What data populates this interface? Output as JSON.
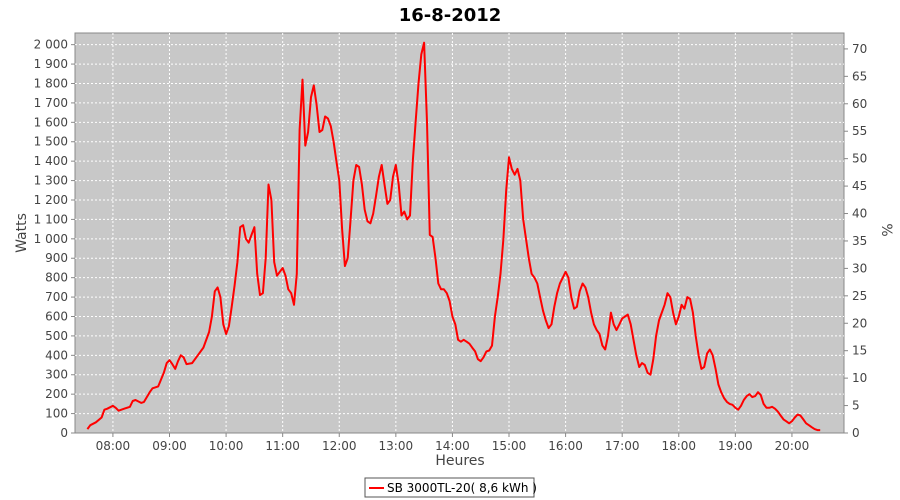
{
  "chart_data": {
    "type": "line",
    "title": "16-8-2012",
    "xlabel": "Heures",
    "ylabel": "Watts",
    "y2label": "%",
    "x_ticks": [
      "08:00",
      "09:00",
      "10:00",
      "11:00",
      "12:00",
      "13:00",
      "14:00",
      "15:00",
      "16:00",
      "17:00",
      "18:00",
      "19:00",
      "20:00"
    ],
    "x_tick_hours": [
      8,
      9,
      10,
      11,
      12,
      13,
      14,
      15,
      16,
      17,
      18,
      19,
      20
    ],
    "xlim": [
      7.33,
      20.92
    ],
    "ylim": [
      0,
      2060
    ],
    "y_ticks": [
      0,
      100,
      200,
      300,
      400,
      500,
      600,
      700,
      800,
      900,
      1000,
      1100,
      1200,
      1300,
      1400,
      1500,
      1600,
      1700,
      1800,
      1900,
      2000
    ],
    "y_tick_labels": [
      "0",
      "100",
      "200",
      "300",
      "400",
      "500",
      "600",
      "700",
      "800",
      "900",
      "1 000",
      "1 100",
      "1 200",
      "1 300",
      "1 400",
      "1 500",
      "1 600",
      "1 700",
      "1 800",
      "1 900",
      "2 000"
    ],
    "y2lim": [
      0,
      72.9
    ],
    "y2_ticks": [
      0,
      5,
      10,
      15,
      20,
      25,
      30,
      35,
      40,
      45,
      50,
      55,
      60,
      65,
      70
    ],
    "grid": true,
    "legend_position": "bottom-center",
    "series": [
      {
        "name": "SB 3000TL-20( 8,6 kWh )",
        "color": "#ff0000",
        "points": [
          [
            7.55,
            20
          ],
          [
            7.6,
            40
          ],
          [
            7.7,
            55
          ],
          [
            7.8,
            80
          ],
          [
            7.85,
            120
          ],
          [
            7.9,
            125
          ],
          [
            8.0,
            140
          ],
          [
            8.05,
            130
          ],
          [
            8.1,
            115
          ],
          [
            8.2,
            125
          ],
          [
            8.3,
            135
          ],
          [
            8.35,
            165
          ],
          [
            8.4,
            170
          ],
          [
            8.5,
            155
          ],
          [
            8.55,
            160
          ],
          [
            8.65,
            210
          ],
          [
            8.7,
            230
          ],
          [
            8.8,
            240
          ],
          [
            8.9,
            310
          ],
          [
            8.95,
            360
          ],
          [
            9.0,
            375
          ],
          [
            9.05,
            355
          ],
          [
            9.1,
            330
          ],
          [
            9.15,
            370
          ],
          [
            9.2,
            400
          ],
          [
            9.25,
            390
          ],
          [
            9.3,
            355
          ],
          [
            9.4,
            360
          ],
          [
            9.5,
            400
          ],
          [
            9.6,
            440
          ],
          [
            9.7,
            520
          ],
          [
            9.75,
            600
          ],
          [
            9.8,
            730
          ],
          [
            9.85,
            750
          ],
          [
            9.9,
            700
          ],
          [
            9.95,
            560
          ],
          [
            10.0,
            510
          ],
          [
            10.05,
            550
          ],
          [
            10.1,
            650
          ],
          [
            10.15,
            760
          ],
          [
            10.2,
            880
          ],
          [
            10.25,
            1060
          ],
          [
            10.3,
            1070
          ],
          [
            10.35,
            1000
          ],
          [
            10.4,
            980
          ],
          [
            10.45,
            1020
          ],
          [
            10.5,
            1060
          ],
          [
            10.55,
            820
          ],
          [
            10.6,
            710
          ],
          [
            10.65,
            720
          ],
          [
            10.7,
            900
          ],
          [
            10.75,
            1280
          ],
          [
            10.8,
            1200
          ],
          [
            10.85,
            880
          ],
          [
            10.9,
            810
          ],
          [
            10.95,
            830
          ],
          [
            11.0,
            850
          ],
          [
            11.05,
            810
          ],
          [
            11.1,
            740
          ],
          [
            11.15,
            720
          ],
          [
            11.2,
            660
          ],
          [
            11.25,
            820
          ],
          [
            11.3,
            1560
          ],
          [
            11.35,
            1820
          ],
          [
            11.4,
            1480
          ],
          [
            11.45,
            1550
          ],
          [
            11.5,
            1730
          ],
          [
            11.55,
            1790
          ],
          [
            11.6,
            1690
          ],
          [
            11.65,
            1550
          ],
          [
            11.7,
            1560
          ],
          [
            11.75,
            1630
          ],
          [
            11.8,
            1620
          ],
          [
            11.85,
            1580
          ],
          [
            11.9,
            1500
          ],
          [
            11.95,
            1400
          ],
          [
            12.0,
            1300
          ],
          [
            12.05,
            1050
          ],
          [
            12.1,
            860
          ],
          [
            12.15,
            900
          ],
          [
            12.2,
            1100
          ],
          [
            12.25,
            1300
          ],
          [
            12.3,
            1380
          ],
          [
            12.35,
            1370
          ],
          [
            12.4,
            1280
          ],
          [
            12.45,
            1150
          ],
          [
            12.5,
            1090
          ],
          [
            12.55,
            1080
          ],
          [
            12.6,
            1130
          ],
          [
            12.65,
            1220
          ],
          [
            12.7,
            1320
          ],
          [
            12.75,
            1380
          ],
          [
            12.8,
            1280
          ],
          [
            12.85,
            1180
          ],
          [
            12.9,
            1200
          ],
          [
            12.95,
            1320
          ],
          [
            13.0,
            1380
          ],
          [
            13.05,
            1280
          ],
          [
            13.1,
            1120
          ],
          [
            13.15,
            1140
          ],
          [
            13.2,
            1100
          ],
          [
            13.25,
            1120
          ],
          [
            13.3,
            1400
          ],
          [
            13.35,
            1600
          ],
          [
            13.4,
            1800
          ],
          [
            13.45,
            1950
          ],
          [
            13.5,
            2010
          ],
          [
            13.55,
            1600
          ],
          [
            13.6,
            1020
          ],
          [
            13.65,
            1010
          ],
          [
            13.7,
            900
          ],
          [
            13.75,
            770
          ],
          [
            13.8,
            740
          ],
          [
            13.85,
            740
          ],
          [
            13.9,
            720
          ],
          [
            13.95,
            680
          ],
          [
            14.0,
            600
          ],
          [
            14.05,
            560
          ],
          [
            14.1,
            480
          ],
          [
            14.15,
            470
          ],
          [
            14.2,
            480
          ],
          [
            14.25,
            470
          ],
          [
            14.3,
            460
          ],
          [
            14.35,
            440
          ],
          [
            14.4,
            420
          ],
          [
            14.45,
            380
          ],
          [
            14.5,
            370
          ],
          [
            14.55,
            390
          ],
          [
            14.6,
            420
          ],
          [
            14.65,
            425
          ],
          [
            14.7,
            450
          ],
          [
            14.75,
            600
          ],
          [
            14.8,
            700
          ],
          [
            14.85,
            820
          ],
          [
            14.9,
            1000
          ],
          [
            14.95,
            1250
          ],
          [
            15.0,
            1420
          ],
          [
            15.05,
            1360
          ],
          [
            15.1,
            1330
          ],
          [
            15.15,
            1360
          ],
          [
            15.2,
            1300
          ],
          [
            15.25,
            1100
          ],
          [
            15.3,
            1000
          ],
          [
            15.35,
            900
          ],
          [
            15.4,
            820
          ],
          [
            15.45,
            800
          ],
          [
            15.5,
            770
          ],
          [
            15.55,
            700
          ],
          [
            15.6,
            630
          ],
          [
            15.65,
            580
          ],
          [
            15.7,
            540
          ],
          [
            15.75,
            560
          ],
          [
            15.8,
            650
          ],
          [
            15.85,
            720
          ],
          [
            15.9,
            770
          ],
          [
            15.95,
            800
          ],
          [
            16.0,
            830
          ],
          [
            16.05,
            800
          ],
          [
            16.1,
            700
          ],
          [
            16.15,
            640
          ],
          [
            16.2,
            650
          ],
          [
            16.25,
            730
          ],
          [
            16.3,
            770
          ],
          [
            16.35,
            750
          ],
          [
            16.4,
            700
          ],
          [
            16.45,
            620
          ],
          [
            16.5,
            560
          ],
          [
            16.55,
            530
          ],
          [
            16.6,
            510
          ],
          [
            16.65,
            450
          ],
          [
            16.7,
            430
          ],
          [
            16.75,
            500
          ],
          [
            16.8,
            620
          ],
          [
            16.85,
            560
          ],
          [
            16.9,
            530
          ],
          [
            16.95,
            560
          ],
          [
            17.0,
            590
          ],
          [
            17.05,
            600
          ],
          [
            17.1,
            610
          ],
          [
            17.15,
            560
          ],
          [
            17.2,
            480
          ],
          [
            17.25,
            400
          ],
          [
            17.3,
            340
          ],
          [
            17.35,
            360
          ],
          [
            17.4,
            350
          ],
          [
            17.45,
            310
          ],
          [
            17.5,
            300
          ],
          [
            17.55,
            380
          ],
          [
            17.6,
            500
          ],
          [
            17.65,
            580
          ],
          [
            17.7,
            620
          ],
          [
            17.75,
            660
          ],
          [
            17.8,
            720
          ],
          [
            17.85,
            700
          ],
          [
            17.9,
            620
          ],
          [
            17.95,
            560
          ],
          [
            18.0,
            600
          ],
          [
            18.05,
            660
          ],
          [
            18.1,
            640
          ],
          [
            18.15,
            700
          ],
          [
            18.2,
            690
          ],
          [
            18.25,
            620
          ],
          [
            18.3,
            500
          ],
          [
            18.35,
            400
          ],
          [
            18.4,
            330
          ],
          [
            18.45,
            340
          ],
          [
            18.5,
            410
          ],
          [
            18.55,
            430
          ],
          [
            18.6,
            400
          ],
          [
            18.65,
            330
          ],
          [
            18.7,
            250
          ],
          [
            18.75,
            210
          ],
          [
            18.8,
            180
          ],
          [
            18.85,
            160
          ],
          [
            18.9,
            150
          ],
          [
            18.95,
            145
          ],
          [
            19.0,
            130
          ],
          [
            19.05,
            120
          ],
          [
            19.1,
            140
          ],
          [
            19.15,
            170
          ],
          [
            19.2,
            190
          ],
          [
            19.25,
            200
          ],
          [
            19.3,
            185
          ],
          [
            19.35,
            190
          ],
          [
            19.4,
            210
          ],
          [
            19.45,
            195
          ],
          [
            19.5,
            150
          ],
          [
            19.55,
            130
          ],
          [
            19.6,
            130
          ],
          [
            19.65,
            135
          ],
          [
            19.7,
            125
          ],
          [
            19.75,
            110
          ],
          [
            19.8,
            90
          ],
          [
            19.85,
            70
          ],
          [
            19.9,
            60
          ],
          [
            19.95,
            50
          ],
          [
            20.0,
            60
          ],
          [
            20.05,
            80
          ],
          [
            20.1,
            95
          ],
          [
            20.15,
            90
          ],
          [
            20.2,
            70
          ],
          [
            20.25,
            50
          ],
          [
            20.3,
            40
          ],
          [
            20.35,
            30
          ],
          [
            20.4,
            20
          ],
          [
            20.45,
            15
          ],
          [
            20.5,
            15
          ]
        ]
      }
    ]
  }
}
